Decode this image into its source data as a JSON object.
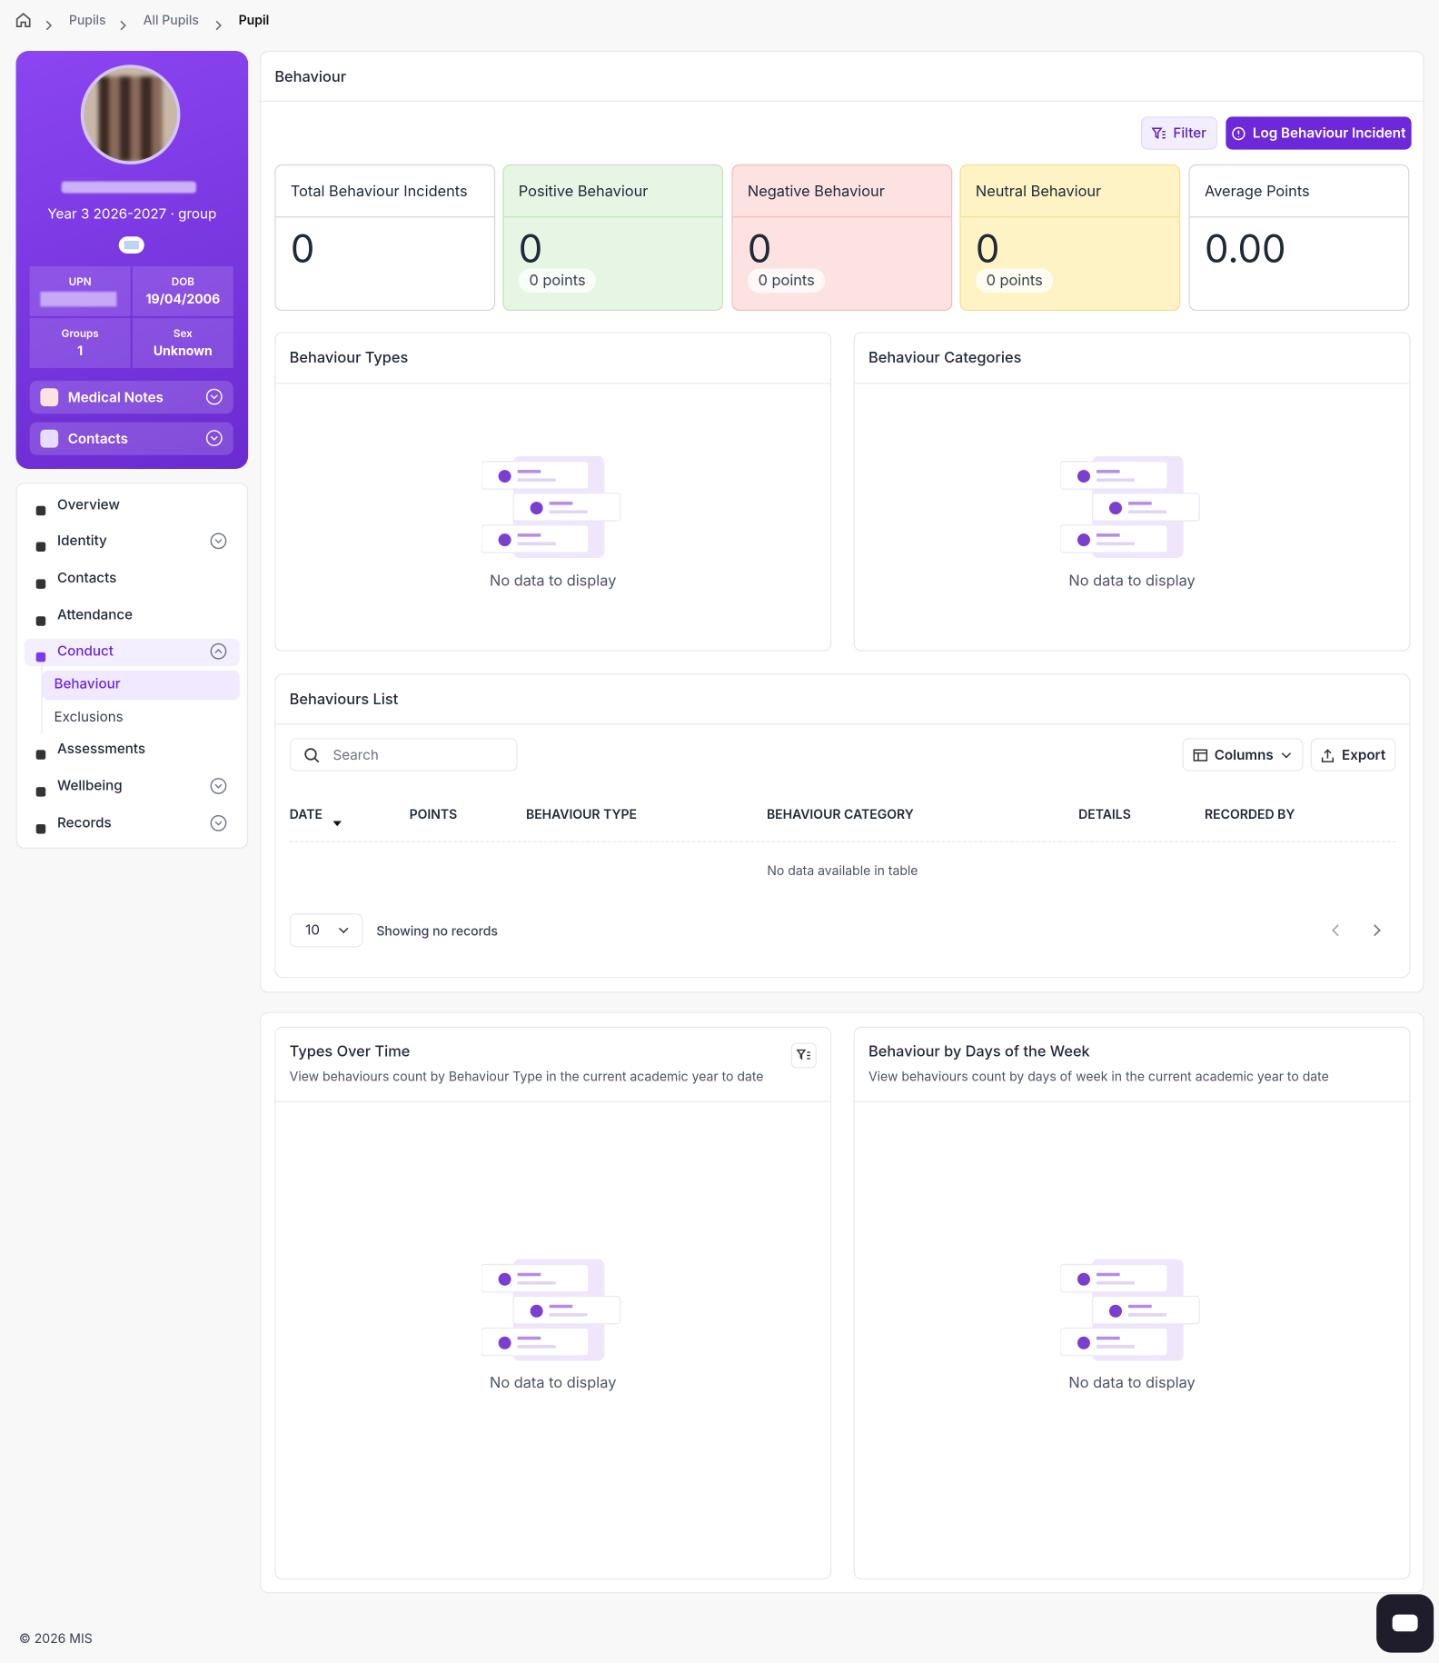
{
  "breadcrumb": [
    "Pupils",
    "All Pupils",
    "Pupil"
  ],
  "profile": {
    "class": "Year 3 2026-2027 · group",
    "fields": [
      {
        "label": "UPN"
      },
      {
        "label": "DOB",
        "value": "19/04/2006"
      },
      {
        "label": "Groups",
        "value": "1"
      },
      {
        "label": "Sex",
        "value": "Unknown"
      }
    ],
    "accordions": [
      "Medical Notes",
      "Contacts"
    ]
  },
  "nav": [
    {
      "label": "Overview"
    },
    {
      "label": "Identity",
      "expand": true
    },
    {
      "label": "Contacts"
    },
    {
      "label": "Attendance"
    },
    {
      "label": "Conduct",
      "expand": true,
      "active": true,
      "children": [
        "Behaviour",
        "Exclusions"
      ]
    },
    {
      "label": "Assessments"
    },
    {
      "label": "Wellbeing",
      "expand": true
    },
    {
      "label": "Records",
      "expand": true
    }
  ],
  "main": {
    "title": "Behaviour",
    "buttons": [
      "Filter",
      "Log Behaviour Incident"
    ],
    "stats": [
      {
        "label": "Total Behaviour Incidents",
        "value": "0"
      },
      {
        "label": "Positive Behaviour",
        "value": "0",
        "points": "0 points"
      },
      {
        "label": "Negative Behaviour",
        "value": "0",
        "points": "0 points"
      },
      {
        "label": "Neutral Behaviour",
        "value": "0",
        "points": "0 points"
      },
      {
        "label": "Average Points",
        "value": "0.00"
      }
    ],
    "panels": [
      "Behaviour Types",
      "Behaviour Categories"
    ],
    "empty": "No data to display",
    "list": {
      "title": "Behaviours List",
      "search": "Search",
      "buttons": [
        "Columns",
        "Export"
      ],
      "columns": [
        "DATE",
        "POINTS",
        "BEHAVIOUR TYPE",
        "BEHAVIOUR CATEGORY",
        "DETAILS",
        "RECORDED BY"
      ],
      "empty": "No data available in table",
      "page_size": "10",
      "status": "Showing no records"
    }
  },
  "charts": [
    {
      "title": "Types Over Time",
      "subtitle": "View behaviours count by Behaviour Type in the current academic year to date"
    },
    {
      "title": "Behaviour by Days of the Week",
      "subtitle": "View behaviours count by days of week in the current academic year to date"
    }
  ],
  "footer": "© 2026 MIS"
}
